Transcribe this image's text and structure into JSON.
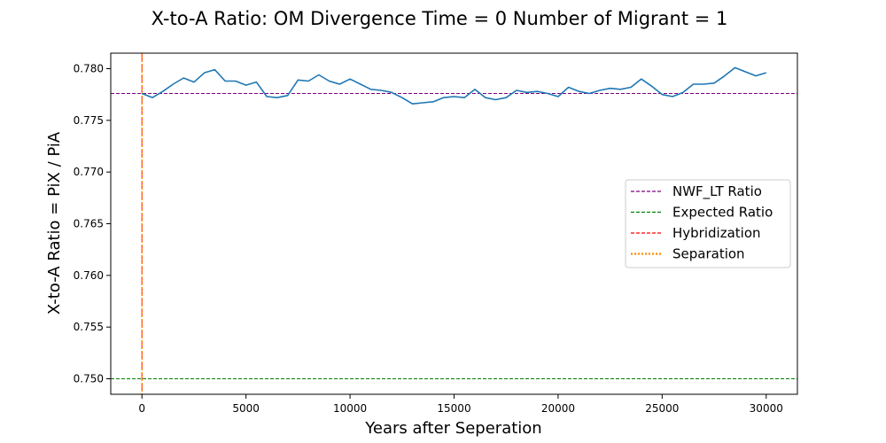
{
  "chart_data": {
    "type": "line",
    "title": "X-to-A Ratio: OM Divergence Time = 0  Number of Migrant = 1",
    "xlabel": "Years after Seperation",
    "ylabel": "X-to-A Ratio = PiX / PiA",
    "xlim": [
      -1500,
      31500
    ],
    "ylim": [
      0.7485,
      0.7815
    ],
    "xticks": [
      0,
      5000,
      10000,
      15000,
      20000,
      25000,
      30000
    ],
    "yticks": [
      0.75,
      0.755,
      0.76,
      0.765,
      0.77,
      0.775,
      0.78
    ],
    "grid": false,
    "legend_position": "center-right",
    "series": [
      {
        "color": "#1f77b4",
        "x": [
          0,
          500,
          1000,
          1500,
          2000,
          2500,
          3000,
          3500,
          4000,
          4500,
          5000,
          5500,
          6000,
          6500,
          7000,
          7500,
          8000,
          8500,
          9000,
          9500,
          10000,
          10500,
          11000,
          11500,
          12000,
          12500,
          13000,
          13500,
          14000,
          14500,
          15000,
          15500,
          16000,
          16500,
          17000,
          17500,
          18000,
          18500,
          19000,
          19500,
          20000,
          20500,
          21000,
          21500,
          22000,
          22500,
          23000,
          23500,
          24000,
          24500,
          25000,
          25500,
          26000,
          26500,
          27000,
          27500,
          28000,
          28500,
          29000,
          29500,
          30000
        ],
        "values": [
          0.7776,
          0.7772,
          0.7778,
          0.7785,
          0.7791,
          0.7787,
          0.7796,
          0.7799,
          0.7788,
          0.7788,
          0.7784,
          0.7787,
          0.7773,
          0.7772,
          0.7774,
          0.7789,
          0.7788,
          0.7794,
          0.7788,
          0.7785,
          0.779,
          0.7785,
          0.778,
          0.7779,
          0.7777,
          0.7772,
          0.7766,
          0.7767,
          0.7768,
          0.7772,
          0.7773,
          0.7772,
          0.778,
          0.7772,
          0.777,
          0.7772,
          0.7779,
          0.7777,
          0.7778,
          0.7776,
          0.7773,
          0.7782,
          0.7778,
          0.7776,
          0.7779,
          0.7781,
          0.778,
          0.7782,
          0.779,
          0.7783,
          0.7775,
          0.7773,
          0.7777,
          0.7785,
          0.7785,
          0.7786,
          0.7793,
          0.7801,
          0.7797,
          0.7793,
          0.7796
        ]
      }
    ],
    "reference_lines": [
      {
        "name": "NWF_LT Ratio",
        "orientation": "horizontal",
        "value": 0.7776,
        "color": "#800080",
        "style": "dashed"
      },
      {
        "name": "Expected Ratio",
        "orientation": "horizontal",
        "value": 0.75,
        "color": "#008000",
        "style": "dashed"
      },
      {
        "name": "Hybridization",
        "orientation": "vertical",
        "value": 0,
        "color": "#ff0000",
        "style": "dashed"
      },
      {
        "name": "Separation",
        "orientation": "vertical",
        "value": 0,
        "color": "#ff8c00",
        "style": "dotted"
      }
    ],
    "legend": [
      "NWF_LT Ratio",
      "Expected Ratio",
      "Hybridization",
      "Separation"
    ]
  }
}
